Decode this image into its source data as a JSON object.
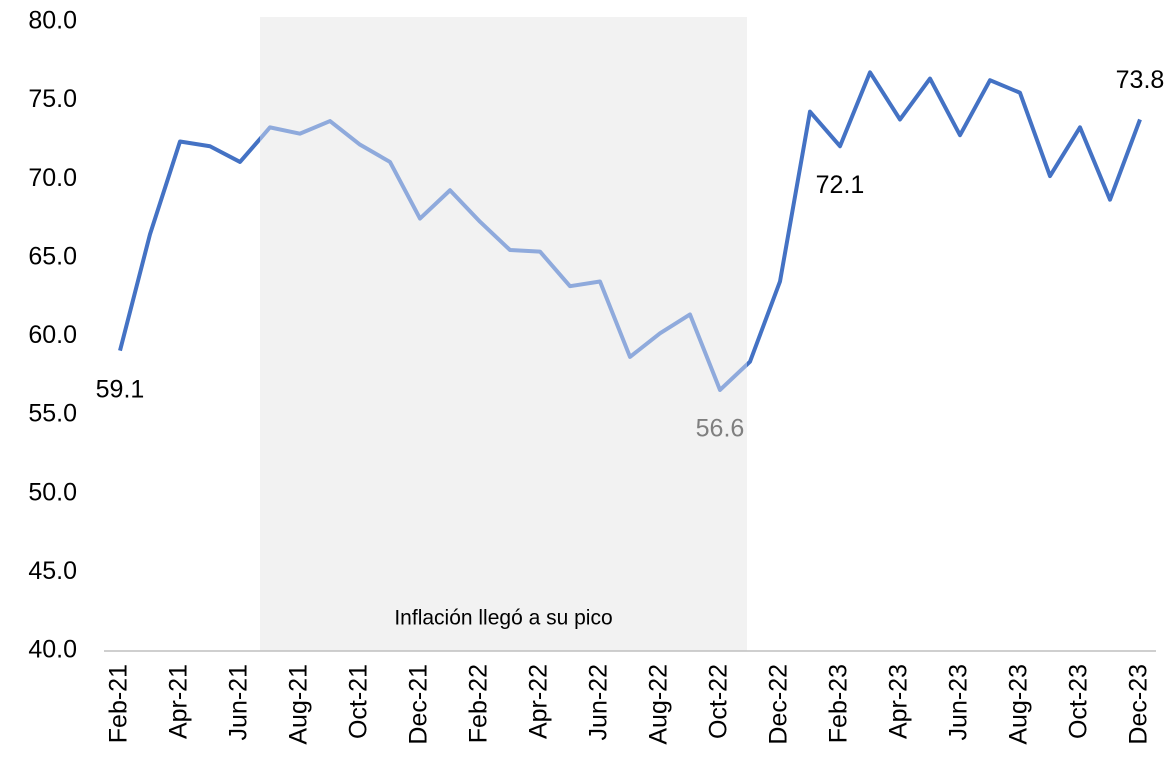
{
  "chart_data": {
    "type": "line",
    "categories": [
      "Feb-21",
      null,
      "Apr-21",
      null,
      "Jun-21",
      null,
      "Aug-21",
      null,
      "Oct-21",
      null,
      "Dec-21",
      null,
      "Feb-22",
      null,
      "Apr-22",
      null,
      "Jun-22",
      null,
      "Aug-22",
      null,
      "Oct-22",
      null,
      "Dec-22",
      null,
      "Feb-23",
      null,
      "Apr-23",
      null,
      "Jun-23",
      null,
      "Aug-23",
      null,
      "Oct-23",
      null,
      "Dec-23"
    ],
    "series": [
      {
        "color": "#4472c4",
        "highlight_color": "#8faadc",
        "values": [
          59.1,
          66.5,
          72.4,
          72.1,
          71.1,
          73.3,
          72.9,
          73.7,
          72.2,
          71.1,
          67.5,
          69.3,
          67.3,
          65.5,
          65.4,
          63.2,
          63.5,
          58.7,
          60.2,
          61.4,
          56.6,
          58.4,
          63.5,
          74.3,
          72.1,
          76.8,
          73.8,
          76.4,
          72.8,
          76.3,
          75.5,
          70.2,
          73.3,
          68.7,
          73.8
        ],
        "value_labels": [
          "59.1",
          null,
          null,
          null,
          null,
          null,
          null,
          null,
          null,
          null,
          null,
          null,
          null,
          null,
          null,
          null,
          null,
          null,
          null,
          null,
          "56.6",
          null,
          null,
          null,
          "72.1",
          null,
          null,
          null,
          null,
          null,
          null,
          null,
          null,
          null,
          "73.8"
        ]
      }
    ],
    "ylim": [
      40,
      80
    ],
    "yticks": [
      {
        "value": 40,
        "label": "40.0"
      },
      {
        "value": 45,
        "label": "45.0"
      },
      {
        "value": 50,
        "label": "50.0"
      },
      {
        "value": 55,
        "label": "55.0"
      },
      {
        "value": 60,
        "label": "60.0"
      },
      {
        "value": 65,
        "label": "65.0"
      },
      {
        "value": 70,
        "label": "70.0"
      },
      {
        "value": 75,
        "label": "75.0"
      },
      {
        "value": 80,
        "label": "80.0"
      }
    ],
    "grid": false,
    "shaded_region": {
      "start": 5,
      "end": 21,
      "label": "Inflación llegó a su pico",
      "color": "#f2f2f2"
    }
  }
}
